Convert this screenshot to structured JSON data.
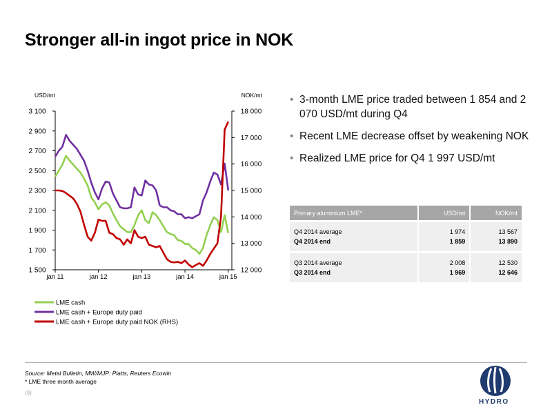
{
  "title": "Stronger all-in ingot price in NOK",
  "bullets": [
    "3-month LME price traded between 1 854 and 2 070 USD/mt during Q4",
    "Recent LME decrease offset by weakening NOK",
    "Realized LME price for Q4 1 997 USD/mt"
  ],
  "table": {
    "headers": [
      "Primary aluminium LME*",
      "USD/mt",
      "NOK/mt"
    ],
    "groups": [
      [
        {
          "label": "Q4 2014 average",
          "usd": "1 974",
          "nok": "13 567",
          "bold": false
        },
        {
          "label": "Q4 2014 end",
          "usd": "1 859",
          "nok": "13 890",
          "bold": true
        }
      ],
      [
        {
          "label": "Q3 2014 average",
          "usd": "2 008",
          "nok": "12 530",
          "bold": false
        },
        {
          "label": "Q3 2014 end",
          "usd": "1 969",
          "nok": "12 646",
          "bold": true
        }
      ]
    ]
  },
  "footer": {
    "source": "Source: Metal Bulletin, MW/MJP: Platts, Reuters Ecowin",
    "note": "* LME three month average",
    "page": "(9)"
  },
  "logo_text": "HYDRO",
  "chart_data": {
    "type": "line",
    "ylabel_left": "USD/mt",
    "ylabel_right": "NOK/mt",
    "yticks_left": [
      "3 100",
      "2 900",
      "2 700",
      "2 500",
      "2 300",
      "2 100",
      "1 900",
      "1 700",
      "1 500"
    ],
    "yticks_right": [
      "18 000",
      "17 000",
      "16 000",
      "15 000",
      "14 000",
      "13 000",
      "12 000"
    ],
    "xticks": [
      "jan 11",
      "jan 12",
      "jan 13",
      "jan 14",
      "jan 15"
    ],
    "ylim_left": [
      1500,
      3100
    ],
    "ylim_right": [
      12000,
      18000
    ],
    "xlim": [
      0,
      49
    ],
    "series": [
      {
        "name": "LME cash",
        "axis": "left",
        "color": "#92d050",
        "values": [
          2440,
          2500,
          2560,
          2650,
          2600,
          2560,
          2520,
          2480,
          2420,
          2350,
          2230,
          2180,
          2110,
          2160,
          2180,
          2150,
          2070,
          2000,
          1940,
          1910,
          1880,
          1880,
          1950,
          2050,
          2100,
          2000,
          1970,
          2080,
          2050,
          2000,
          1940,
          1880,
          1860,
          1850,
          1800,
          1790,
          1760,
          1760,
          1720,
          1700,
          1660,
          1720,
          1850,
          1950,
          2030,
          2000,
          1880,
          2050,
          1870
        ]
      },
      {
        "name": "LME cash + Europe duty paid",
        "axis": "left",
        "color": "#7030a0",
        "values": [
          2640,
          2700,
          2740,
          2860,
          2800,
          2760,
          2720,
          2660,
          2600,
          2500,
          2380,
          2280,
          2210,
          2320,
          2390,
          2380,
          2270,
          2200,
          2130,
          2120,
          2120,
          2130,
          2330,
          2260,
          2250,
          2400,
          2360,
          2350,
          2300,
          2150,
          2130,
          2130,
          2100,
          2090,
          2060,
          2060,
          2020,
          2030,
          2020,
          2040,
          2060,
          2200,
          2280,
          2390,
          2480,
          2460,
          2360,
          2570,
          2300
        ]
      },
      {
        "name": "LME cash + Europe duty paid NOK (RHS)",
        "axis": "right",
        "color": "#c00000",
        "values": [
          15000,
          15000,
          14980,
          14900,
          14800,
          14700,
          14500,
          14200,
          13700,
          13250,
          13100,
          13400,
          13900,
          13850,
          13850,
          13400,
          13350,
          13200,
          13150,
          12950,
          13150,
          13000,
          13500,
          13250,
          13200,
          13250,
          12950,
          12900,
          12850,
          12900,
          12650,
          12400,
          12300,
          12280,
          12300,
          12250,
          12350,
          12200,
          12100,
          12180,
          12250,
          12150,
          12350,
          12600,
          12800,
          13000,
          14000,
          17300,
          17600
        ]
      }
    ]
  }
}
